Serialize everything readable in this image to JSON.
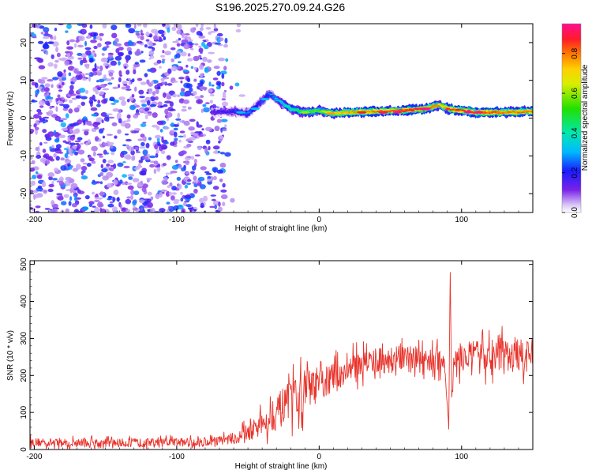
{
  "title": "S196.2025.270.09.24.G26",
  "chart_data": [
    {
      "type": "heatmap",
      "xlabel": "Height of straight line (km)",
      "ylabel": "Frequency (Hz)",
      "xlim": [
        -203,
        150
      ],
      "ylim": [
        -25,
        25
      ],
      "x_ticks": [
        -200,
        -100,
        0,
        100
      ],
      "y_ticks": [
        -20,
        -10,
        0,
        10,
        20
      ],
      "colorbar": {
        "label": "Normalized spectral amplitude",
        "range": [
          0,
          0.95
        ],
        "ticks": [
          "0.0",
          "0.2",
          "0.4",
          "0.6",
          "0.8"
        ],
        "tick_values": [
          0.0,
          0.2,
          0.4,
          0.6,
          0.8
        ]
      },
      "ridge": [
        {
          "x": -75,
          "f": 1.5,
          "amp": 0.15
        },
        {
          "x": -60,
          "f": 1.8,
          "amp": 0.2
        },
        {
          "x": -50,
          "f": 1.2,
          "amp": 0.25
        },
        {
          "x": -40,
          "f": 4.5,
          "amp": 0.2
        },
        {
          "x": -35,
          "f": 6.5,
          "amp": 0.25
        },
        {
          "x": -30,
          "f": 5.0,
          "amp": 0.3
        },
        {
          "x": -20,
          "f": 2.5,
          "amp": 0.4
        },
        {
          "x": -10,
          "f": 1.5,
          "amp": 0.5
        },
        {
          "x": 0,
          "f": 2.0,
          "amp": 0.55
        },
        {
          "x": 10,
          "f": 1.2,
          "amp": 0.7
        },
        {
          "x": 20,
          "f": 1.5,
          "amp": 0.75
        },
        {
          "x": 40,
          "f": 1.8,
          "amp": 0.8
        },
        {
          "x": 60,
          "f": 2.0,
          "amp": 0.85
        },
        {
          "x": 75,
          "f": 2.5,
          "amp": 0.9
        },
        {
          "x": 85,
          "f": 3.5,
          "amp": 0.6
        },
        {
          "x": 90,
          "f": 2.5,
          "amp": 0.85
        },
        {
          "x": 110,
          "f": 1.5,
          "amp": 0.85
        },
        {
          "x": 130,
          "f": 1.5,
          "amp": 0.8
        },
        {
          "x": 150,
          "f": 1.8,
          "amp": 0.8
        }
      ],
      "noise": {
        "x_range": [
          -203,
          -65
        ],
        "f_range": [
          -25,
          25
        ],
        "amp_range": [
          0.05,
          0.3
        ]
      }
    },
    {
      "type": "line",
      "xlabel": "Height of straight line (km)",
      "ylabel": "SNR (10 * v/v)",
      "xlim": [
        -203,
        150
      ],
      "ylim": [
        0,
        510
      ],
      "x_ticks": [
        -200,
        -100,
        0,
        100
      ],
      "y_ticks": [
        0,
        100,
        200,
        300,
        400,
        500
      ],
      "color": "#e8332b",
      "series": [
        {
          "name": "SNR",
          "x": [
            -203,
            -180,
            -150,
            -120,
            -100,
            -80,
            -70,
            -60,
            -50,
            -40,
            -30,
            -20,
            -10,
            0,
            10,
            20,
            30,
            40,
            60,
            80,
            88,
            90,
            91,
            92,
            93,
            95,
            100,
            120,
            140,
            150
          ],
          "base": [
            20,
            18,
            18,
            18,
            20,
            20,
            25,
            30,
            45,
            70,
            100,
            130,
            160,
            175,
            195,
            215,
            235,
            240,
            245,
            245,
            240,
            120,
            60,
            500,
            130,
            240,
            250,
            255,
            255,
            250
          ],
          "amplitude": [
            15,
            15,
            15,
            15,
            15,
            15,
            15,
            20,
            30,
            40,
            60,
            70,
            70,
            60,
            50,
            45,
            45,
            45,
            45,
            45,
            40,
            10,
            10,
            10,
            10,
            45,
            50,
            55,
            55,
            50
          ]
        }
      ]
    }
  ]
}
